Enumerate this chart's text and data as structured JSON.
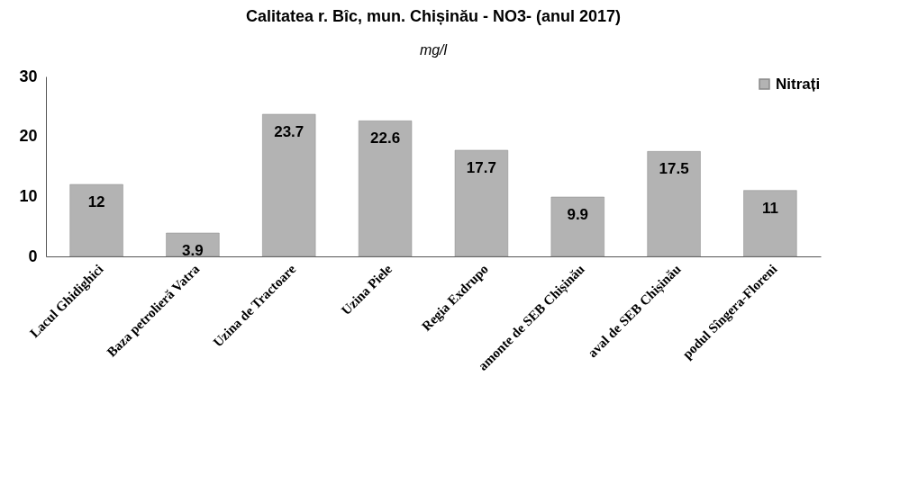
{
  "chart_data": {
    "type": "bar",
    "title": "Calitatea r. Bîc, mun. Chișinău - NO3- (anul 2017)",
    "ylabel": "mg/l",
    "categories": [
      "Lacul Ghidighici",
      "Baza petrolieră Vatra",
      "Uzina de Tractoare",
      "Uzina Piele",
      "Regia Exdrupo",
      "amonte de SEB Chișinău",
      "aval de SEB Chișinău",
      "podul Sîngera-Floreni"
    ],
    "series": [
      {
        "name": "Nitrați",
        "color": "#b3b3b3",
        "values": [
          12,
          3.9,
          23.7,
          22.6,
          17.7,
          9.9,
          17.5,
          11
        ]
      }
    ],
    "ylim": [
      0,
      30
    ],
    "yticks": [
      0,
      10,
      20,
      30
    ],
    "grid": false,
    "legend": "top right",
    "data_labels": true
  }
}
